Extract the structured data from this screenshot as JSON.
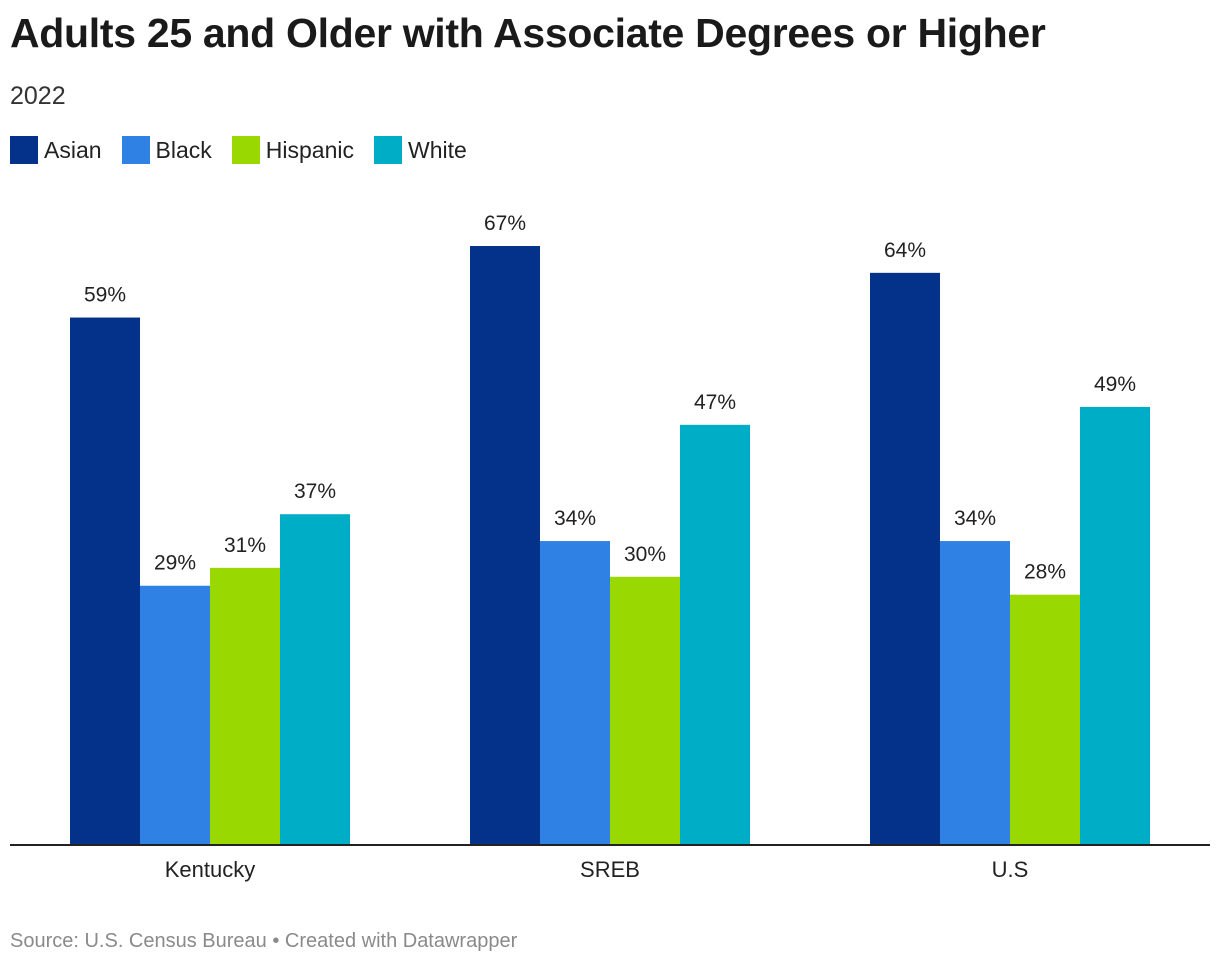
{
  "title": "Adults 25 and Older with Associate Degrees or Higher",
  "subtitle": "2022",
  "source": "Source: U.S. Census Bureau • Created with Datawrapper",
  "chart_data": {
    "type": "bar",
    "title": "Adults 25 and Older with Associate Degrees or Higher",
    "subtitle": "2022",
    "xlabel": "",
    "ylabel": "",
    "ylim": [
      0,
      70
    ],
    "grid": false,
    "legend_position": "top-left",
    "value_suffix": "%",
    "categories": [
      "Kentucky",
      "SREB",
      "U.S"
    ],
    "series": [
      {
        "name": "Asian",
        "color": "#04318a",
        "values": [
          59,
          67,
          64
        ]
      },
      {
        "name": "Black",
        "color": "#2f81e3",
        "values": [
          29,
          34,
          34
        ]
      },
      {
        "name": "Hispanic",
        "color": "#99d800",
        "values": [
          31,
          30,
          28
        ]
      },
      {
        "name": "White",
        "color": "#00adc6",
        "values": [
          37,
          47,
          49
        ]
      }
    ]
  }
}
